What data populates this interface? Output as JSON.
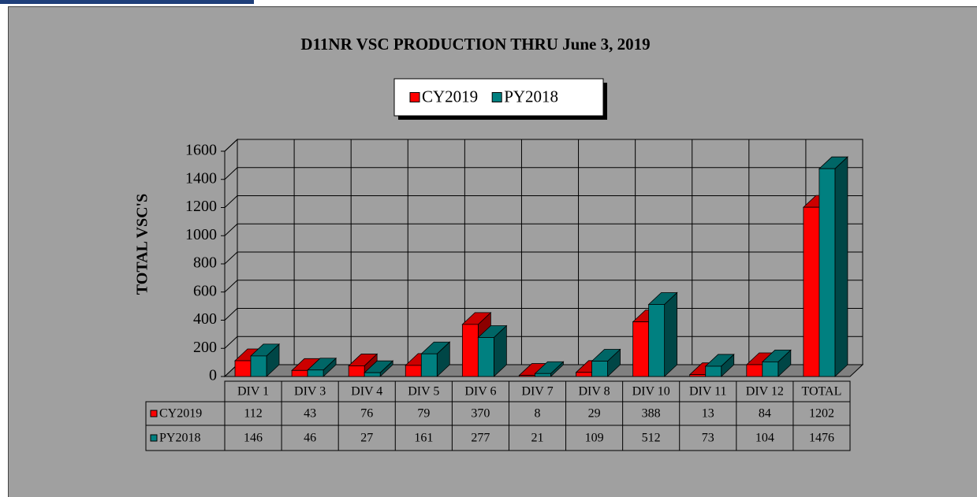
{
  "chart_data": {
    "type": "bar3d",
    "title": "D11NR VSC PRODUCTION THRU June 3, 2019",
    "y_label": "TOTAL VSC'S",
    "categories": [
      "DIV 1",
      "DIV 3",
      "DIV 4",
      "DIV 5",
      "DIV 6",
      "DIV 7",
      "DIV 8",
      "DIV 10",
      "DIV 11",
      "DIV 12",
      "TOTAL"
    ],
    "series": [
      {
        "name": "CY2019",
        "color": "#ff0000",
        "values": [
          112,
          43,
          76,
          79,
          370,
          8,
          29,
          388,
          13,
          84,
          1202
        ]
      },
      {
        "name": "PY2018",
        "color": "#008080",
        "values": [
          146,
          46,
          27,
          161,
          277,
          21,
          109,
          512,
          73,
          104,
          1476
        ]
      }
    ],
    "ylim": [
      0,
      1600
    ],
    "yticks": [
      0,
      200,
      400,
      600,
      800,
      1000,
      1200,
      1400,
      1600
    ],
    "grid": true,
    "legend": "top"
  }
}
